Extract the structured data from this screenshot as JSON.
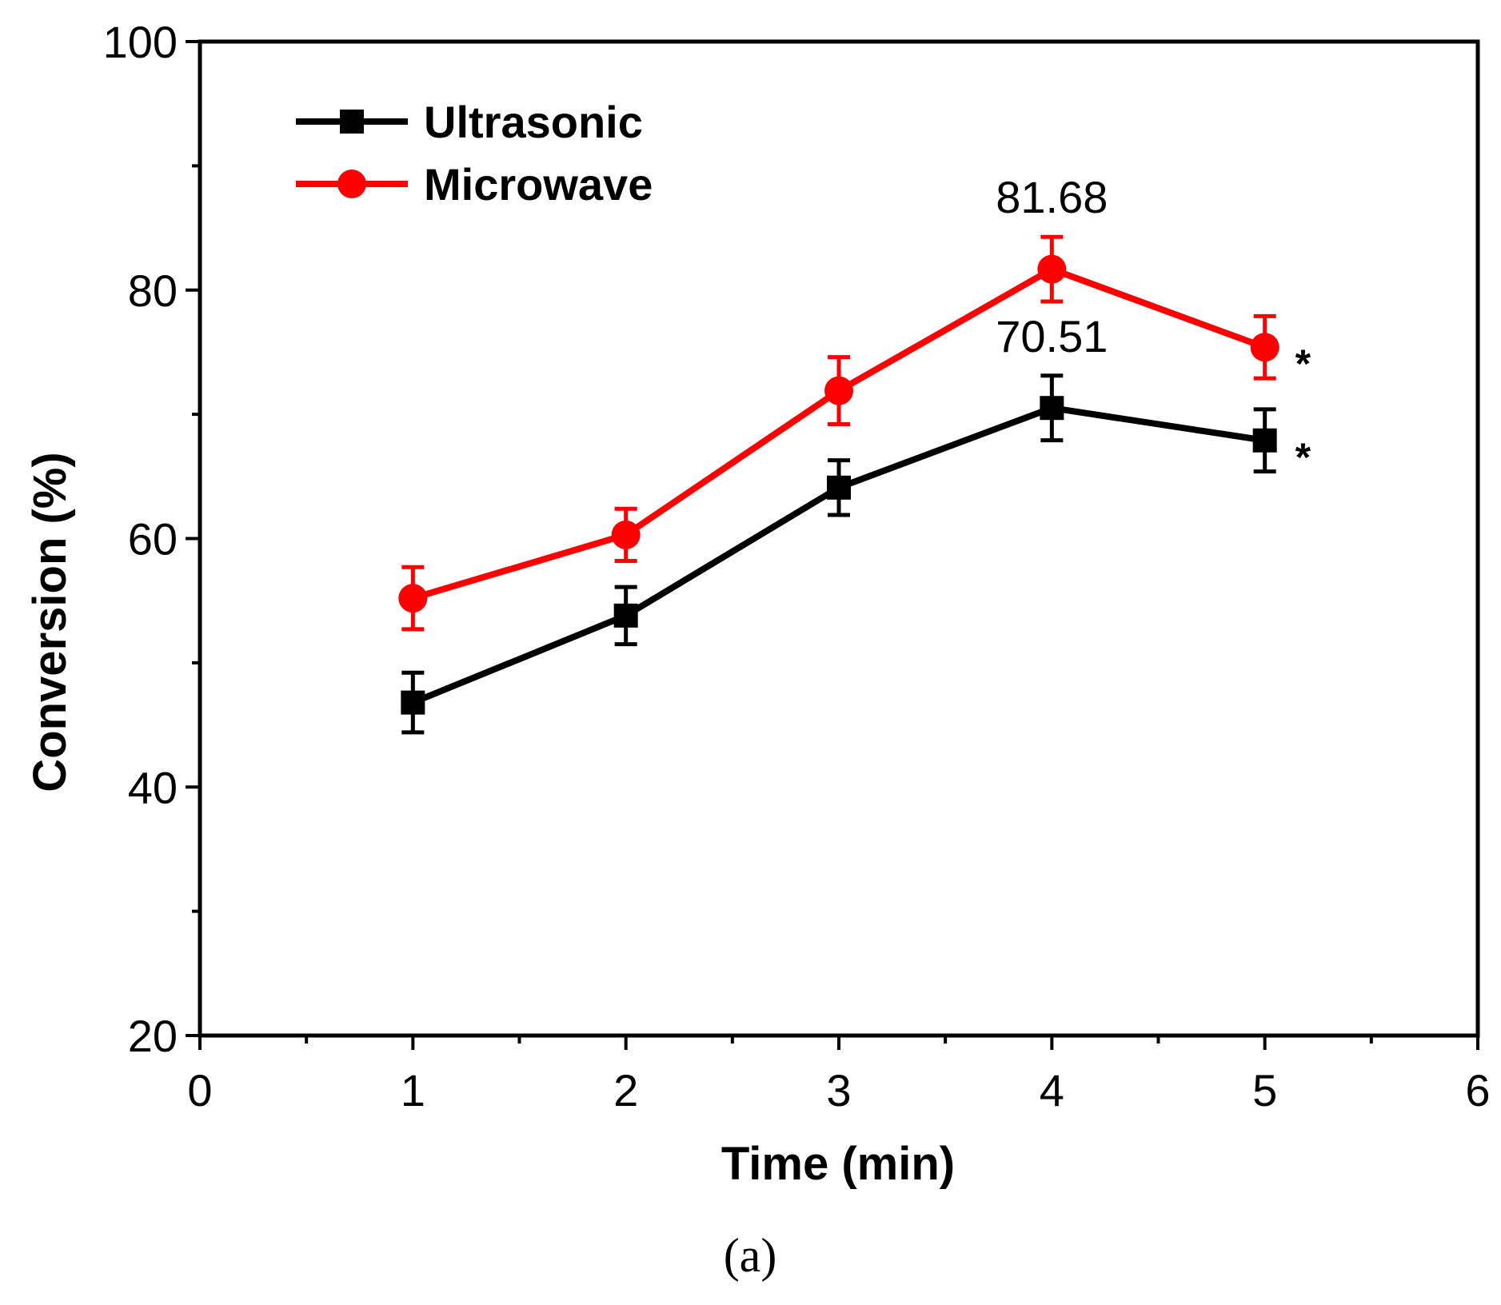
{
  "chart_data": {
    "type": "line",
    "title": "",
    "xlabel": "Time (min)",
    "ylabel": "Conversion (%)",
    "xlim": [
      0,
      6
    ],
    "ylim": [
      20,
      100
    ],
    "xticks": [
      0,
      1,
      2,
      3,
      4,
      5,
      6
    ],
    "yticks": [
      20,
      40,
      60,
      80,
      100
    ],
    "x": [
      1,
      2,
      3,
      4,
      5
    ],
    "series": [
      {
        "name": "Ultrasonic",
        "color": "#000000",
        "marker": "square",
        "values": [
          46.8,
          53.8,
          64.1,
          70.51,
          67.9
        ],
        "errors": [
          2.4,
          2.3,
          2.2,
          2.6,
          2.5
        ]
      },
      {
        "name": "Microwave",
        "color": "#ff0000",
        "marker": "circle",
        "values": [
          55.2,
          60.3,
          71.9,
          81.68,
          75.4
        ],
        "errors": [
          2.5,
          2.1,
          2.7,
          2.6,
          2.5
        ]
      }
    ],
    "annotations": [
      {
        "text": "81.68",
        "series": "Microwave",
        "x": 4
      },
      {
        "text": "70.51",
        "series": "Ultrasonic",
        "x": 4
      },
      {
        "text": "*",
        "series": "Microwave",
        "x": 5
      },
      {
        "text": "*",
        "series": "Ultrasonic",
        "x": 5
      }
    ],
    "legend": "top-left",
    "grid": false
  },
  "caption": "(a)"
}
